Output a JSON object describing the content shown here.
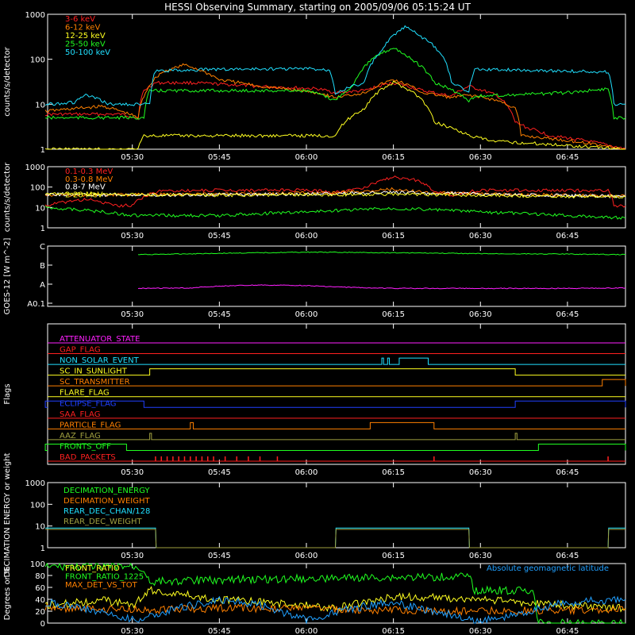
{
  "title": "HESSI Observing Summary, starting on 2005/09/06 05:15:24 UT",
  "x_ticks": [
    "05:30",
    "05:45",
    "06:00",
    "06:15",
    "06:30",
    "06:45"
  ],
  "chart_data": [
    {
      "type": "line",
      "panel": "hxr-lightcurves",
      "ylabel": "counts/s/detector",
      "yscale": "log",
      "ylim": [
        1,
        1000
      ],
      "ytick_labels": [
        "1",
        "10",
        "100",
        "1000"
      ],
      "xlim": [
        "05:15:24",
        "06:55:00"
      ],
      "legend_placement": "top-left",
      "series": [
        {
          "name": "3-6 keV",
          "color": "#ff2020",
          "x": [
            "05:15",
            "05:22",
            "05:28",
            "05:31",
            "05:32",
            "05:34",
            "05:40",
            "05:45",
            "05:52",
            "06:02",
            "06:05",
            "06:10",
            "06:15",
            "06:20",
            "06:25",
            "06:28",
            "06:33",
            "06:36",
            "06:38",
            "06:42",
            "06:55"
          ],
          "values": [
            6,
            6,
            6,
            5,
            20,
            30,
            30,
            28,
            25,
            22,
            18,
            20,
            30,
            20,
            15,
            25,
            15,
            4,
            3,
            2,
            1
          ]
        },
        {
          "name": "6-12 keV",
          "color": "#ff8000",
          "x": [
            "05:15",
            "05:25",
            "05:31",
            "05:32",
            "05:35",
            "05:39",
            "05:45",
            "05:52",
            "06:02",
            "06:05",
            "06:10",
            "06:15",
            "06:20",
            "06:25",
            "06:28",
            "06:33",
            "06:36",
            "06:37",
            "06:55"
          ],
          "values": [
            7,
            9,
            5,
            15,
            50,
            75,
            35,
            25,
            18,
            14,
            18,
            35,
            18,
            14,
            16,
            12,
            8,
            2,
            1
          ]
        },
        {
          "name": "12-25 keV",
          "color": "#ffff20",
          "x": [
            "05:15",
            "05:25",
            "05:31",
            "05:32",
            "05:40",
            "05:50",
            "06:00",
            "06:05",
            "06:10",
            "06:15",
            "06:18",
            "06:22",
            "06:28",
            "06:32",
            "06:55"
          ],
          "values": [
            1,
            1,
            1,
            2,
            2,
            2,
            2,
            2,
            8,
            30,
            20,
            4,
            2,
            1.5,
            1
          ]
        },
        {
          "name": "25-50 keV",
          "color": "#20ff20",
          "x": [
            "05:15",
            "05:28",
            "05:32",
            "05:33",
            "05:45",
            "06:00",
            "06:05",
            "06:08",
            "06:15",
            "06:18",
            "06:22",
            "06:28",
            "06:29",
            "06:45",
            "06:52",
            "06:53",
            "06:55"
          ],
          "values": [
            5,
            5,
            5,
            20,
            20,
            20,
            12,
            25,
            180,
            100,
            30,
            12,
            15,
            18,
            22,
            5,
            5
          ]
        },
        {
          "name": "50-100 keV",
          "color": "#20e0ff",
          "x": [
            "05:15",
            "05:20",
            "05:22",
            "05:26",
            "05:30",
            "05:33",
            "05:34",
            "05:45",
            "06:00",
            "06:04",
            "06:05",
            "06:10",
            "06:13",
            "06:17",
            "06:20",
            "06:25",
            "06:28",
            "06:29",
            "06:45",
            "06:52",
            "06:53",
            "06:55"
          ],
          "values": [
            10,
            11,
            16,
            10,
            10,
            10,
            55,
            60,
            62,
            58,
            18,
            30,
            150,
            520,
            300,
            30,
            18,
            60,
            55,
            52,
            10,
            10
          ]
        }
      ]
    },
    {
      "type": "line",
      "panel": "gamma-lightcurves",
      "ylabel": "counts/s/detector",
      "yscale": "log",
      "ylim": [
        1,
        1000
      ],
      "ytick_labels": [
        "1",
        "10",
        "100",
        "1000"
      ],
      "legend_placement": "top-left",
      "series": [
        {
          "name": "0.1-0.3 MeV",
          "color": "#ff2020",
          "x": [
            "05:15",
            "05:22",
            "05:27",
            "05:30",
            "05:35",
            "05:45",
            "06:00",
            "06:05",
            "06:10",
            "06:15",
            "06:18",
            "06:22",
            "06:25",
            "06:30",
            "06:40",
            "06:52",
            "06:53",
            "06:55"
          ],
          "values": [
            12,
            25,
            12,
            13,
            65,
            70,
            70,
            55,
            90,
            300,
            250,
            60,
            40,
            70,
            70,
            65,
            12,
            12
          ]
        },
        {
          "name": "0.3-0.8 MeV",
          "color": "#ff8000",
          "x": [
            "05:15",
            "05:30",
            "05:45",
            "06:00",
            "06:10",
            "06:15",
            "06:20",
            "06:30",
            "06:45",
            "06:55"
          ],
          "values": [
            40,
            42,
            45,
            50,
            60,
            80,
            55,
            45,
            40,
            38
          ]
        },
        {
          "name": "0.8-7 MeV",
          "color": "#ffffff",
          "x": [
            "05:15",
            "05:30",
            "05:45",
            "06:00",
            "06:15",
            "06:30",
            "06:45",
            "06:55"
          ],
          "values": [
            45,
            40,
            42,
            45,
            55,
            45,
            38,
            35
          ]
        },
        {
          "name": "2-20 MeV",
          "color": "#ffff20",
          "x": [
            "05:15",
            "05:30",
            "05:45",
            "06:00",
            "06:15",
            "06:30",
            "06:45",
            "06:55"
          ],
          "values": [
            50,
            42,
            40,
            42,
            45,
            40,
            35,
            33
          ]
        },
        {
          "name": "",
          "color": "#20ff20",
          "x": [
            "05:15",
            "05:30",
            "05:45",
            "06:00",
            "06:15",
            "06:30",
            "06:45",
            "06:55"
          ],
          "values": [
            10,
            4,
            4,
            6,
            9,
            6,
            4,
            3
          ]
        }
      ]
    },
    {
      "type": "line",
      "panel": "goes",
      "ylabel": "GOES-12 [W m^-2]",
      "ytick_labels": [
        "A0.1",
        "A",
        "B",
        "C"
      ],
      "series": [
        {
          "name": "",
          "color": "#20ff20",
          "x": [
            "05:31",
            "05:45",
            "06:00",
            "06:15",
            "06:30",
            "06:45",
            "06:55"
          ],
          "values": [
            2.55,
            2.62,
            2.68,
            2.65,
            2.6,
            2.58,
            2.55
          ]
        },
        {
          "name": "",
          "color": "#ff20ff",
          "x": [
            "05:31",
            "05:40",
            "05:45",
            "05:52",
            "06:00",
            "06:05",
            "06:15",
            "06:30",
            "06:45",
            "06:55"
          ],
          "values": [
            0.78,
            0.8,
            0.9,
            0.95,
            0.93,
            0.85,
            0.78,
            0.78,
            0.78,
            0.8
          ]
        }
      ]
    },
    {
      "type": "flags",
      "panel": "flags",
      "ylabel": "Flags",
      "flags": [
        {
          "name": "ATTENUATOR_STATE",
          "color": "#ff20ff",
          "on": []
        },
        {
          "name": "GAP_FLAG",
          "color": "#ff2020",
          "on": []
        },
        {
          "name": "NON_SOLAR_EVENT",
          "color": "#20e0ff",
          "on": [
            [
              "06:13",
              "06:13.3"
            ],
            [
              "06:14",
              "06:14.3"
            ],
            [
              "06:16",
              "06:21"
            ]
          ]
        },
        {
          "name": "SC_IN_SUNLIGHT",
          "color": "#ffff20",
          "on": [
            [
              "05:33",
              "06:36"
            ]
          ]
        },
        {
          "name": "SC_TRANSMITTER",
          "color": "#ff8000",
          "on": [
            [
              "06:51",
              "06:55"
            ]
          ]
        },
        {
          "name": "FLARE_FLAG",
          "color": "#ffff20",
          "on": []
        },
        {
          "name": "ECLIPSE_FLAG",
          "color": "#2040ff",
          "on": [
            [
              "05:15",
              "05:32"
            ],
            [
              "06:36",
              "06:55"
            ]
          ]
        },
        {
          "name": "SAA_FLAG",
          "color": "#ff2020",
          "on": []
        },
        {
          "name": "PARTICLE_FLAG",
          "color": "#ff8000",
          "on": [
            [
              "05:40",
              "05:40.5"
            ],
            [
              "06:11",
              "06:22"
            ]
          ]
        },
        {
          "name": "AAZ_FLAG",
          "color": "#a0a040",
          "on": [
            [
              "05:33",
              "05:33.3"
            ],
            [
              "06:36",
              "06:36.3"
            ]
          ]
        },
        {
          "name": "FRONTS_OFF",
          "color": "#20ff20",
          "on": [
            [
              "05:15",
              "05:29"
            ],
            [
              "06:40",
              "06:55"
            ]
          ]
        },
        {
          "name": "BAD_PACKETS",
          "color": "#ff2020",
          "spikes": [
            "05:34",
            "05:35",
            "05:36",
            "05:37",
            "05:38",
            "05:39",
            "05:40",
            "05:41",
            "05:42",
            "05:43",
            "05:44",
            "05:46",
            "05:48",
            "05:50",
            "05:52",
            "05:55",
            "06:22",
            "06:52"
          ]
        }
      ]
    },
    {
      "type": "line",
      "panel": "decimation",
      "ylabel": "DECIMATION ENERGY or weight",
      "yscale": "log",
      "ylim": [
        1,
        1000
      ],
      "ytick_labels": [
        "1",
        "10",
        "100",
        "1000"
      ],
      "legend_placement": "top-left",
      "series": [
        {
          "name": "DECIMATION_ENERGY",
          "color": "#20ff20",
          "x": [],
          "values": []
        },
        {
          "name": "DECIMATION_WEIGHT",
          "color": "#ff8000",
          "x": [],
          "values": []
        },
        {
          "name": "REAR_DEC_CHAN/128",
          "color": "#20e0ff",
          "x": [
            "05:15",
            "05:34",
            "05:34.1",
            "06:05",
            "06:05.1",
            "06:28",
            "06:28.1",
            "06:52",
            "06:52.1",
            "06:55"
          ],
          "values": [
            8,
            8,
            1,
            1,
            8,
            8,
            1,
            1,
            8,
            8
          ]
        },
        {
          "name": "REAR_DEC_WEIGHT",
          "color": "#a0a040",
          "x": [
            "05:15",
            "05:34",
            "05:34.1",
            "06:05",
            "06:05.1",
            "06:28",
            "06:28.1",
            "06:52",
            "06:52.1",
            "06:55"
          ],
          "values": [
            7,
            7,
            1,
            1,
            7,
            7,
            1,
            1,
            7,
            7
          ]
        }
      ]
    },
    {
      "type": "line",
      "panel": "ratios",
      "ylabel": "Degrees or %",
      "ylim": [
        0,
        100
      ],
      "ytick_labels": [
        "0",
        "20",
        "40",
        "60",
        "80",
        "100"
      ],
      "legend_placement": "top-left",
      "annotation": "Absolute geomagnetic latitude",
      "series": [
        {
          "name": "FRONT_RATIO",
          "color": "#ffff20",
          "x": [
            "05:15",
            "05:25",
            "05:30",
            "05:33",
            "05:45",
            "06:00",
            "06:05",
            "06:15",
            "06:30",
            "06:45",
            "06:55"
          ],
          "values": [
            30,
            38,
            30,
            55,
            40,
            30,
            25,
            45,
            40,
            30,
            25
          ]
        },
        {
          "name": "FRONT_RATIO_1225",
          "color": "#20ff20",
          "x": [
            "05:15",
            "05:30",
            "05:32",
            "05:33",
            "06:00",
            "06:28",
            "06:29",
            "06:39",
            "06:40",
            "06:55"
          ],
          "values": [
            95,
            95,
            90,
            70,
            75,
            78,
            55,
            55,
            0,
            0
          ]
        },
        {
          "name": "MAX_DET_VS_TOT",
          "color": "#ff8000",
          "x": [
            "05:15",
            "05:30",
            "05:45",
            "06:00",
            "06:15",
            "06:30",
            "06:45",
            "06:55"
          ],
          "values": [
            25,
            22,
            25,
            24,
            22,
            20,
            22,
            24
          ]
        },
        {
          "name": "",
          "color": "#20a0ff",
          "x": [
            "05:15",
            "05:22",
            "05:30",
            "05:38",
            "05:45",
            "05:52",
            "06:00",
            "06:08",
            "06:15",
            "06:22",
            "06:30",
            "06:38",
            "06:45",
            "06:55"
          ],
          "values": [
            35,
            25,
            5,
            25,
            40,
            30,
            5,
            25,
            35,
            20,
            2,
            20,
            35,
            40
          ]
        }
      ]
    }
  ]
}
